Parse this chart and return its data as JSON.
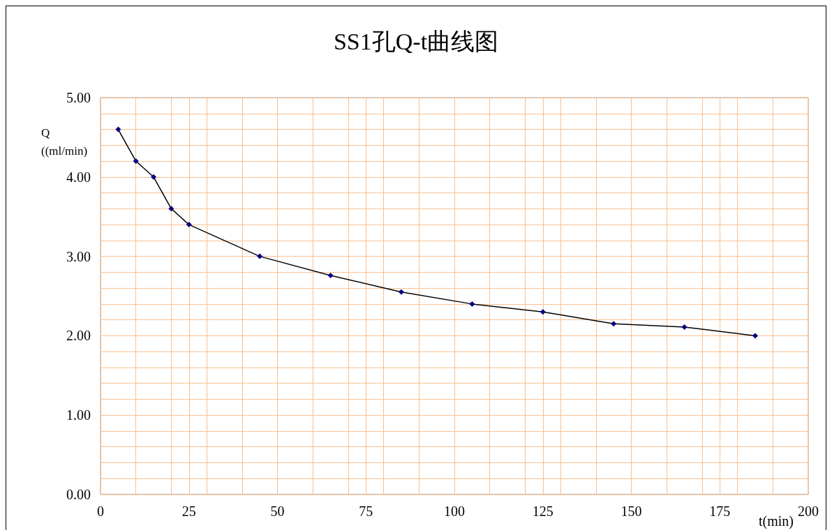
{
  "chart_data": {
    "type": "line",
    "title": "SS1孔Q-t曲线图",
    "xlabel": "t(min)",
    "ylabel": "Q\n((ml/min)",
    "x": [
      5,
      10,
      15,
      20,
      25,
      45,
      65,
      85,
      105,
      125,
      145,
      165,
      185
    ],
    "series": [
      {
        "color": "#000080",
        "values": [
          4.6,
          4.2,
          4.0,
          3.6,
          3.4,
          3.0,
          2.76,
          2.55,
          2.4,
          2.3,
          2.15,
          2.11,
          2.0
        ]
      }
    ],
    "xlim": [
      0,
      200
    ],
    "xticks": [
      0,
      25,
      50,
      75,
      100,
      125,
      150,
      175,
      200
    ],
    "ylim": [
      0,
      5
    ],
    "yticks": [
      {
        "value": 0,
        "label": "0.00"
      },
      {
        "value": 1,
        "label": "1.00"
      },
      {
        "value": 2,
        "label": "2.00"
      },
      {
        "value": 3,
        "label": "3.00"
      },
      {
        "value": 4,
        "label": "4.00"
      },
      {
        "value": 5,
        "label": "5.00"
      }
    ],
    "grid": true,
    "marker": "diamond",
    "line_style": "solid"
  }
}
